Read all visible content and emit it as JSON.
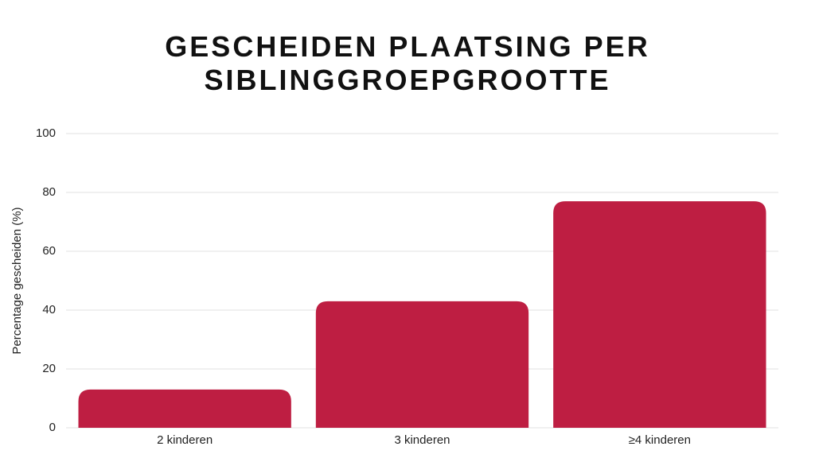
{
  "chart_data": {
    "type": "bar",
    "title": "GESCHEIDEN PLAATSING PER SIBLINGGROEPGROOTTE",
    "y_label": "Percentage gescheiden (%)",
    "categories": [
      "2 kinderen",
      "3 kinderen",
      "≥4 kinderen"
    ],
    "values": [
      13,
      43,
      77
    ],
    "color": "#be1e42",
    "ylim": [
      0,
      100
    ],
    "yticks": [
      0,
      20,
      40,
      60,
      80,
      100
    ],
    "grid": true
  }
}
